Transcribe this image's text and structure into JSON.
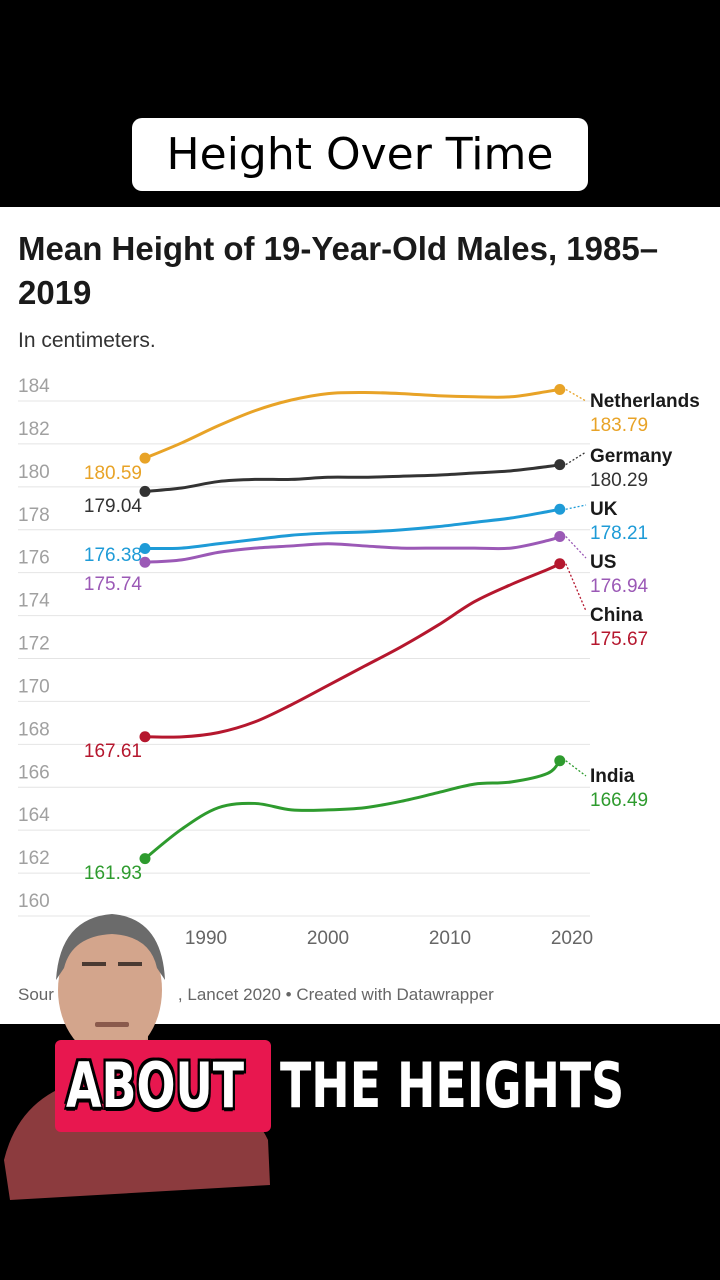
{
  "overlay": {
    "title": "Height Over Time"
  },
  "chart": {
    "title": "Mean Height of 19-Year-Old Males, 1985–2019",
    "subtitle": "In centimeters.",
    "source_left": "Sour",
    "source_right": ", Lancet 2020 • Created with Datawrapper"
  },
  "caption": {
    "word1": "ABOUT",
    "word2": "THE HEIGHTS"
  },
  "colors": {
    "Netherlands": "#e8a327",
    "Germany": "#333333",
    "UK": "#1e9bd7",
    "US": "#9b59b6",
    "China": "#b5172e",
    "India": "#2e9b2e",
    "caption_highlight": "#e8174f"
  },
  "chart_data": {
    "type": "line",
    "title": "Mean Height of 19-Year-Old Males, 1985–2019",
    "subtitle": "In centimeters.",
    "xlabel": "",
    "ylabel": "",
    "xlim": [
      1985,
      2020
    ],
    "ylim": [
      160,
      184
    ],
    "x_ticks": [
      1990,
      2000,
      2010,
      2020
    ],
    "y_ticks": [
      160,
      162,
      164,
      166,
      168,
      170,
      172,
      174,
      176,
      178,
      180,
      182,
      184
    ],
    "grid": true,
    "legend": "labels at line ends",
    "series": [
      {
        "name": "Netherlands",
        "color": "#e8a327",
        "start_label": "180.59",
        "end_label": "183.79",
        "x": [
          1985,
          1988,
          1991,
          1994,
          1997,
          2000,
          2003,
          2006,
          2009,
          2012,
          2015,
          2018,
          2019
        ],
        "y": [
          180.59,
          181.3,
          182.1,
          182.8,
          183.3,
          183.6,
          183.65,
          183.6,
          183.5,
          183.45,
          183.45,
          183.7,
          183.79
        ]
      },
      {
        "name": "Germany",
        "color": "#333333",
        "start_label": "179.04",
        "end_label": "180.29",
        "x": [
          1985,
          1988,
          1991,
          1994,
          1997,
          2000,
          2003,
          2006,
          2009,
          2012,
          2015,
          2018,
          2019
        ],
        "y": [
          179.04,
          179.2,
          179.5,
          179.6,
          179.6,
          179.7,
          179.7,
          179.75,
          179.8,
          179.9,
          180.0,
          180.2,
          180.29
        ]
      },
      {
        "name": "UK",
        "color": "#1e9bd7",
        "start_label": "176.38",
        "end_label": "178.21",
        "x": [
          1985,
          1988,
          1991,
          1994,
          1997,
          2000,
          2003,
          2006,
          2009,
          2012,
          2015,
          2018,
          2019
        ],
        "y": [
          176.38,
          176.4,
          176.6,
          176.8,
          177.0,
          177.1,
          177.15,
          177.25,
          177.4,
          177.6,
          177.8,
          178.1,
          178.21
        ]
      },
      {
        "name": "US",
        "color": "#9b59b6",
        "start_label": "175.74",
        "end_label": "176.94",
        "x": [
          1985,
          1988,
          1991,
          1994,
          1997,
          2000,
          2003,
          2006,
          2009,
          2012,
          2015,
          2018,
          2019
        ],
        "y": [
          175.74,
          175.85,
          176.2,
          176.4,
          176.5,
          176.6,
          176.5,
          176.4,
          176.4,
          176.4,
          176.4,
          176.75,
          176.94
        ]
      },
      {
        "name": "China",
        "color": "#b5172e",
        "start_label": "167.61",
        "end_label": "175.67",
        "x": [
          1985,
          1988,
          1991,
          1994,
          1997,
          2000,
          2003,
          2006,
          2009,
          2012,
          2015,
          2018,
          2019
        ],
        "y": [
          167.61,
          167.6,
          167.8,
          168.3,
          169.1,
          170.0,
          170.9,
          171.8,
          172.8,
          173.9,
          174.7,
          175.4,
          175.67
        ]
      },
      {
        "name": "India",
        "color": "#2e9b2e",
        "start_label": "161.93",
        "end_label": "166.49",
        "x": [
          1985,
          1988,
          1991,
          1994,
          1997,
          2000,
          2003,
          2006,
          2009,
          2012,
          2015,
          2018,
          2019
        ],
        "y": [
          161.93,
          163.3,
          164.3,
          164.5,
          164.2,
          164.2,
          164.3,
          164.6,
          165.0,
          165.4,
          165.5,
          165.9,
          166.49
        ]
      }
    ]
  }
}
